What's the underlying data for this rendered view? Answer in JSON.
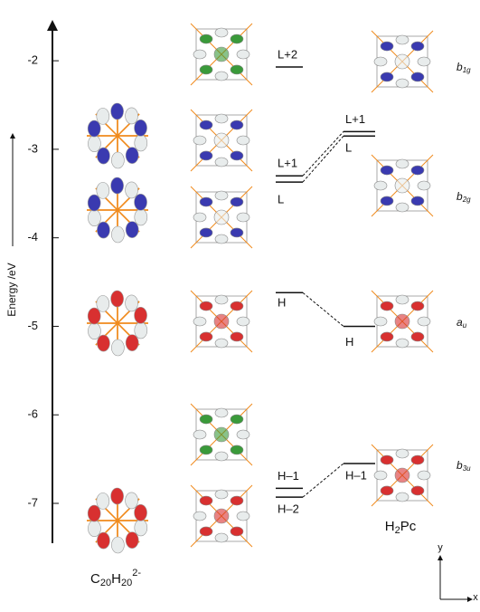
{
  "axis": {
    "label": "Energy /eV",
    "ylim": [
      -7.45,
      -1.6
    ],
    "yticks": [
      -2,
      -3,
      -4,
      -5,
      -6,
      -7
    ]
  },
  "levels": {
    "c20h20": [
      {
        "label": "L+2",
        "energy": -2.07
      },
      {
        "label": "L+1",
        "energy": -3.3
      },
      {
        "label": "L",
        "energy": -3.37
      },
      {
        "label": "H",
        "energy": -4.62
      },
      {
        "label": "H–1",
        "energy": -6.83
      },
      {
        "label": "H–2",
        "energy": -6.93
      }
    ],
    "h2pc": [
      {
        "label": "L+1",
        "energy": -2.8
      },
      {
        "label": "L",
        "energy": -2.85
      },
      {
        "label": "H",
        "energy": -5.0
      },
      {
        "label": "H–1",
        "energy": -6.55
      }
    ]
  },
  "symmetry_labels": [
    [
      "b",
      "1g"
    ],
    [
      "b",
      "2g"
    ],
    [
      "a",
      "u"
    ],
    [
      "b",
      "3u"
    ]
  ],
  "molecule_labels": {
    "c20h20": [
      "C",
      "20",
      "H",
      "20",
      "2-"
    ],
    "h2pc": [
      "H",
      "2",
      "Pc"
    ]
  },
  "frame_axes": {
    "y": "y",
    "x": "x"
  }
}
